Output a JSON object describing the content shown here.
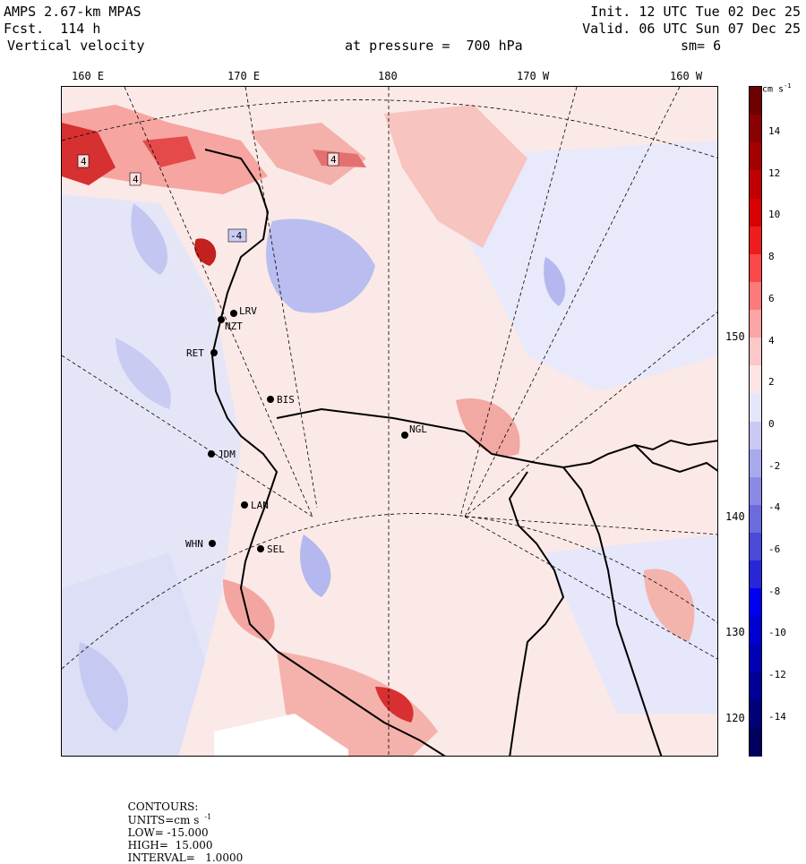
{
  "header": {
    "model": "AMPS 2.67-km MPAS",
    "fcst": "Fcst.  114 h",
    "field": "Vertical velocity",
    "init": "Init. 12 UTC Tue 02 Dec 25",
    "valid": "Valid. 06 UTC Sun 07 Dec 25",
    "pressure": "at pressure =  700 hPa",
    "smooth": "sm= 6"
  },
  "longitude_labels": [
    "160 E",
    "170 E",
    "180",
    "170 W",
    "160 W"
  ],
  "latitude_labels": [
    "150 W",
    "140 W",
    "130 W",
    "120 W"
  ],
  "stations": [
    {
      "id": "BIS"
    },
    {
      "id": "NGL"
    },
    {
      "id": "JDM"
    },
    {
      "id": "LAN"
    },
    {
      "id": "WHN"
    },
    {
      "id": "SEL"
    },
    {
      "id": "RET"
    },
    {
      "id": "NZT"
    },
    {
      "id": "LRV"
    }
  ],
  "contour_labels": [
    "4",
    "4",
    "4",
    "-4"
  ],
  "colorbar": {
    "units": "cm s",
    "units_exp": "-1",
    "tick_labels": [
      "14",
      "12",
      "10",
      "8",
      "6",
      "4",
      "2",
      "0",
      "-2",
      "-4",
      "-6",
      "-8",
      "-10",
      "-12",
      "-14"
    ],
    "colors": [
      "#6e0000",
      "#8b0000",
      "#a50000",
      "#c00000",
      "#d80000",
      "#ee1c1c",
      "#fa4848",
      "#fd7a7a",
      "#fba4a4",
      "#fbc7c7",
      "#fde5e5",
      "#e6e6fb",
      "#c9c9f4",
      "#a9a9ee",
      "#8a8ae6",
      "#6b6bde",
      "#4a4ad8",
      "#2727d8",
      "#0000f0",
      "#0000d2",
      "#0000b4",
      "#000096",
      "#000078",
      "#00005e"
    ]
  },
  "footer": {
    "contours": "CONTOURS:",
    "units_label": "UNITS=cm s",
    "units_exp": "-1",
    "low": "LOW= -15.000",
    "high": "HIGH=  15.000",
    "interval": "INTERVAL=   1.0000"
  }
}
